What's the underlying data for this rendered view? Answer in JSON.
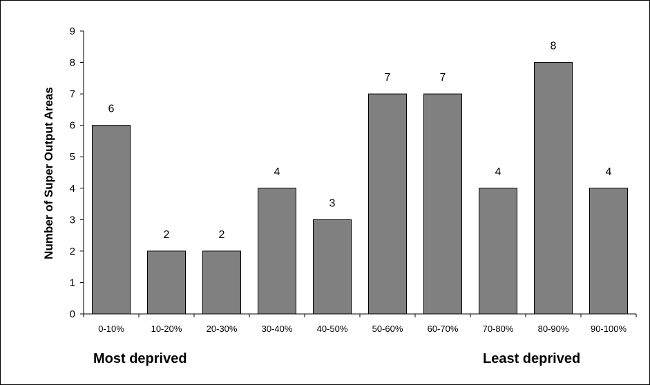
{
  "chart_data": {
    "type": "bar",
    "title": "",
    "xlabel": "",
    "ylabel": "Number of Super Output Areas",
    "categories": [
      "0-10%",
      "10-20%",
      "20-30%",
      "30-40%",
      "40-50%",
      "50-60%",
      "60-70%",
      "70-80%",
      "80-90%",
      "90-100%"
    ],
    "values": [
      6,
      2,
      2,
      4,
      3,
      7,
      7,
      4,
      8,
      4
    ],
    "data_labels": [
      "6",
      "2",
      "2",
      "4",
      "3",
      "7",
      "7",
      "4",
      "8",
      "4"
    ],
    "ylim": [
      0,
      9
    ],
    "yticks": [
      "0",
      "1",
      "2",
      "3",
      "4",
      "5",
      "6",
      "7",
      "8",
      "9"
    ],
    "grid": false,
    "legend": "none",
    "bar_color": "#808080",
    "annotations": {
      "left": "Most deprived",
      "right": "Least deprived"
    }
  }
}
